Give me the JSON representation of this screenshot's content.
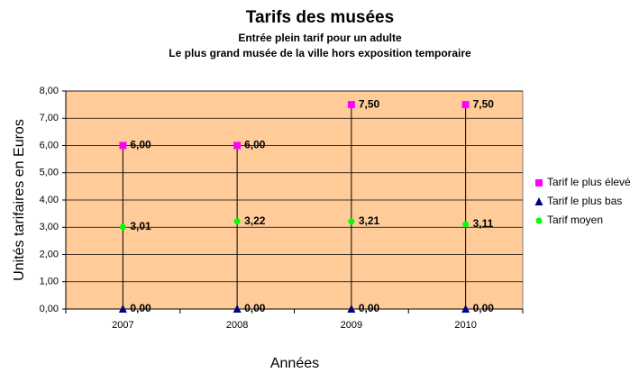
{
  "chart_data": {
    "type": "hilo-marker",
    "title": "Tarifs des musées",
    "subtitle": [
      "Entrée plein tarif pour un adulte",
      "Le plus grand musée de la ville hors exposition temporaire"
    ],
    "x_label": "Années",
    "y_label": "Unités tarifaires en Euros",
    "categories": [
      "2007",
      "2008",
      "2009",
      "2010"
    ],
    "series": [
      {
        "name": "Tarif le plus élevé",
        "color": "#ff00ff",
        "marker": "square",
        "values": [
          6,
          6,
          7.5,
          7.5
        ],
        "value_labels": [
          "6,00",
          "6,00",
          "7,50",
          "7,50"
        ]
      },
      {
        "name": "Tarif le plus bas",
        "color": "#000080",
        "marker": "triangle",
        "values": [
          0,
          0,
          0,
          0
        ],
        "value_labels": [
          "0,00",
          "0,00",
          "0,00",
          "0,00"
        ]
      },
      {
        "name": "Tarif moyen",
        "color": "#00ff00",
        "marker": "circle",
        "values": [
          3.01,
          3.22,
          3.21,
          3.11
        ],
        "value_labels": [
          "3,01",
          "3,22",
          "3,21",
          "3,11"
        ]
      }
    ],
    "ylim": [
      0,
      8
    ],
    "yticks": [
      {
        "value": 0,
        "label": "0,00"
      },
      {
        "value": 1,
        "label": "1,00"
      },
      {
        "value": 2,
        "label": "2,00"
      },
      {
        "value": 3,
        "label": "3,00"
      },
      {
        "value": 4,
        "label": "4,00"
      },
      {
        "value": 5,
        "label": "5,00"
      },
      {
        "value": 6,
        "label": "6,00"
      },
      {
        "value": 7,
        "label": "7,00"
      },
      {
        "value": 8,
        "label": "8,00"
      }
    ],
    "grid": true,
    "plot_background": "#ffcc99",
    "legend": "right"
  }
}
